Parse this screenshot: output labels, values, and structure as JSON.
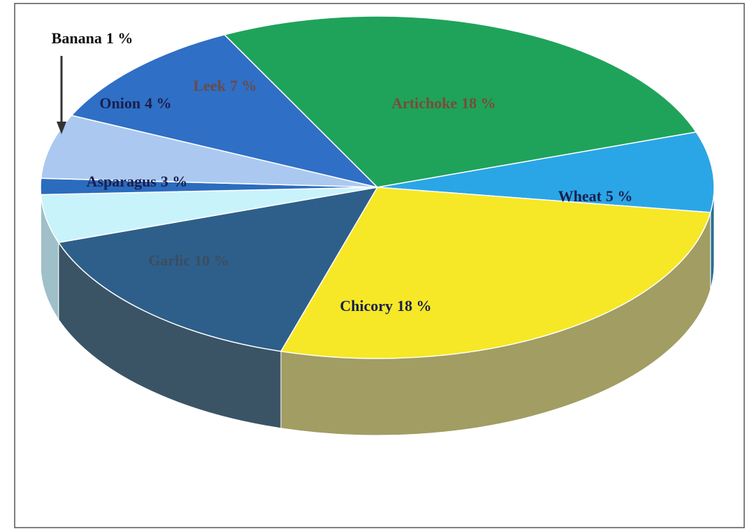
{
  "chart_data": {
    "type": "pie",
    "categories": [
      "Artichoke",
      "Wheat",
      "Chicory",
      "Garlic",
      "Asparagus",
      "Banana",
      "Onion",
      "Leek"
    ],
    "values": [
      18,
      5,
      18,
      10,
      3,
      1,
      4,
      7
    ],
    "value_labels": [
      "18 %",
      "5 %",
      "18 %",
      "10 %",
      "3 %",
      "1 %",
      "4 %",
      "7 %"
    ],
    "colors": [
      "#1fa35a",
      "#2aa6e6",
      "#f6e826",
      "#2e5f8a",
      "#c9f3fb",
      "#2b6cbf",
      "#abc9f0",
      "#2f6fc6"
    ],
    "side_colors": [
      "#177a44",
      "#2a6f94",
      "#a19d63",
      "#3a5466",
      "#9fc0c8",
      "#23569a",
      "#8aa2c2",
      "#24569a"
    ],
    "label_colors": [
      "#7a4b3a",
      "#1a1f4e",
      "#1a1f4e",
      "#3b4d60",
      "#1a1f4e",
      "#111111",
      "#1a1f4e",
      "#6b4a45"
    ]
  }
}
